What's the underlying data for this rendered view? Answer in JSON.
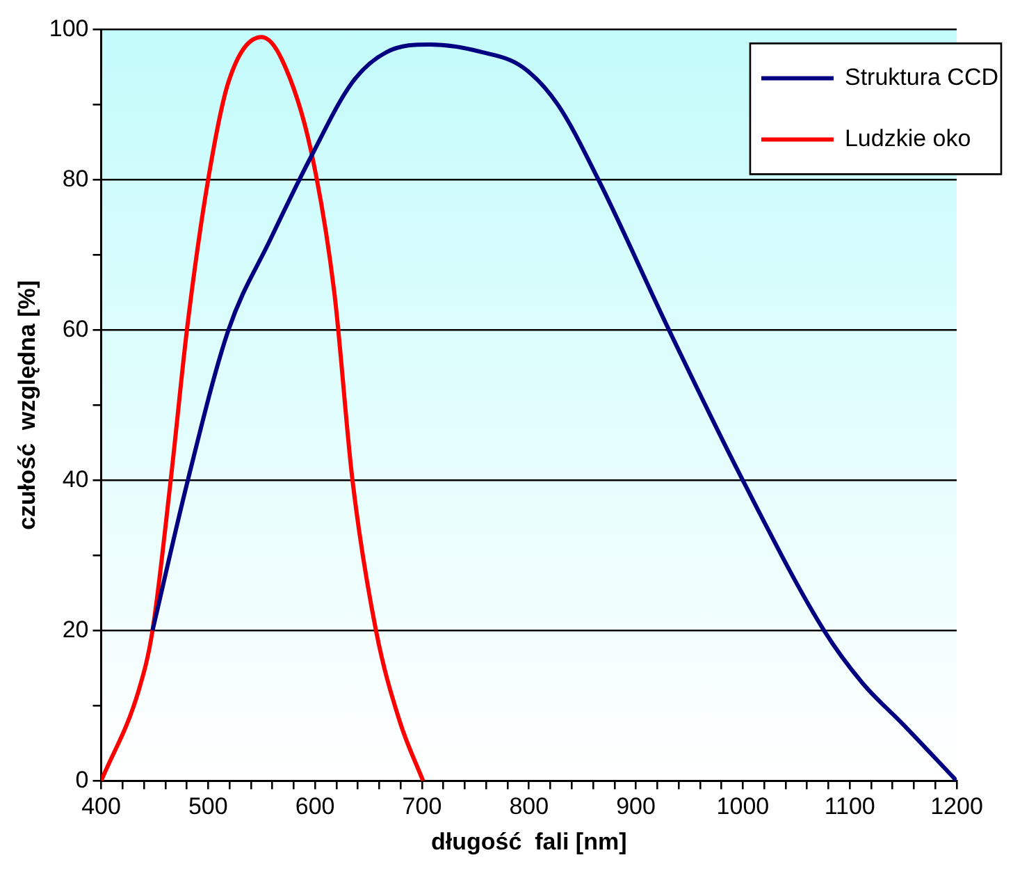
{
  "chart_data": {
    "type": "line",
    "xlabel": "długość  fali [nm]",
    "ylabel": "czułość  względna [%]",
    "xlim": [
      400,
      1200
    ],
    "xticks": [
      400,
      {
        "value": 420,
        "label": null
      },
      {
        "value": 440,
        "label": null
      },
      {
        "value": 460,
        "label": null
      },
      {
        "value": 480,
        "label": null
      },
      500,
      {
        "value": 520,
        "label": null
      },
      {
        "value": 540,
        "label": null
      },
      {
        "value": 560,
        "label": null
      },
      {
        "value": 580,
        "label": null
      },
      600,
      {
        "value": 620,
        "label": null
      },
      {
        "value": 640,
        "label": null
      },
      {
        "value": 660,
        "label": null
      },
      {
        "value": 680,
        "label": null
      },
      700,
      {
        "value": 720,
        "label": null
      },
      {
        "value": 740,
        "label": null
      },
      {
        "value": 760,
        "label": null
      },
      {
        "value": 780,
        "label": null
      },
      800,
      {
        "value": 820,
        "label": null
      },
      {
        "value": 840,
        "label": null
      },
      {
        "value": 860,
        "label": null
      },
      {
        "value": 880,
        "label": null
      },
      900,
      {
        "value": 920,
        "label": null
      },
      {
        "value": 940,
        "label": null
      },
      {
        "value": 960,
        "label": null
      },
      {
        "value": 980,
        "label": null
      },
      1000,
      {
        "value": 1020,
        "label": null
      },
      {
        "value": 1040,
        "label": null
      },
      {
        "value": 1060,
        "label": null
      },
      {
        "value": 1080,
        "label": null
      },
      1100,
      {
        "value": 1120,
        "label": null
      },
      {
        "value": 1140,
        "label": null
      },
      {
        "value": 1160,
        "label": null
      },
      {
        "value": 1180,
        "label": null
      },
      1200
    ],
    "ylim": [
      0,
      100
    ],
    "yticks": [
      0,
      {
        "value": 10,
        "label": null
      },
      20,
      {
        "value": 30,
        "label": null
      },
      40,
      {
        "value": 50,
        "label": null
      },
      60,
      {
        "value": 70,
        "label": null
      },
      80,
      {
        "value": 90,
        "label": null
      },
      100
    ],
    "grid": "y",
    "legend": "top right",
    "marker": "none",
    "line_style": "solid",
    "series": [
      {
        "name": "Struktura CCD",
        "color": "#000080",
        "x": [
          448,
          481,
          519,
          558,
          596,
          635,
          667,
          708,
          756,
          794,
          827,
          865,
          931,
          1000,
          1076,
          1112,
          1150,
          1200
        ],
        "values": [
          20,
          40,
          60,
          72,
          83,
          93,
          97,
          98,
          97,
          95,
          90,
          80,
          60,
          40,
          20,
          13,
          7.5,
          0
        ]
      },
      {
        "name": "Ludzkie oko",
        "color": "#ff0000",
        "x": [
          400,
          435,
          448,
          465,
          481,
          500,
          519,
          550,
          569,
          596,
          618,
          635,
          657,
          679,
          701
        ],
        "values": [
          0,
          12,
          20,
          40,
          61,
          80,
          93,
          99,
          96,
          84,
          65,
          40,
          20,
          8,
          0
        ]
      }
    ]
  }
}
